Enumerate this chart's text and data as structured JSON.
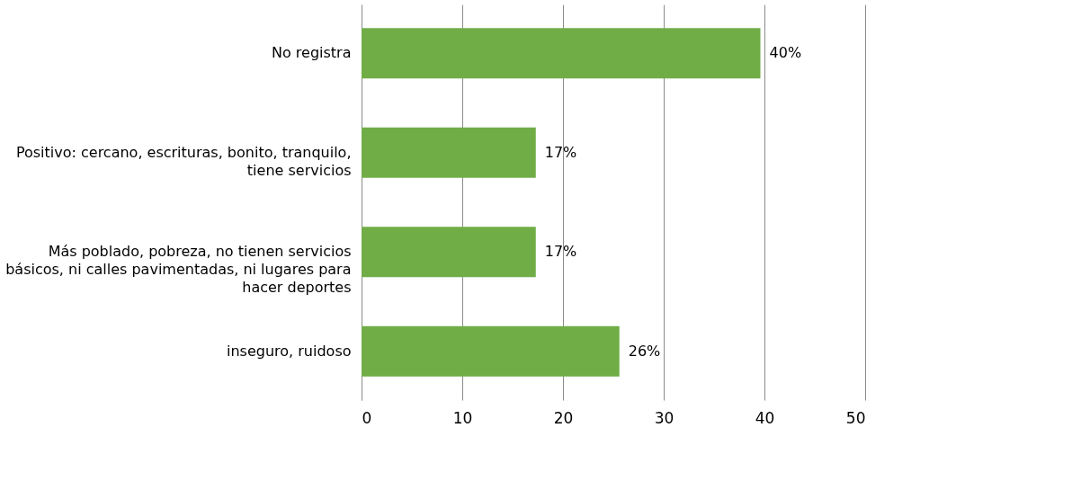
{
  "chart_data": {
    "type": "bar",
    "orientation": "horizontal",
    "categories": [
      "No registra",
      "Positivo: cercano, escrituras, bonito, tranquilo, tiene servicios",
      "Más poblado, pobreza, no tienen servicios básicos, ni calles pavimentadas, ni lugares para hacer deportes",
      "inseguro, ruidoso"
    ],
    "values": [
      39.6,
      17.3,
      17.3,
      25.6
    ],
    "value_labels": [
      "40%",
      "17%",
      "17%",
      "26%"
    ],
    "color": "#70ad47",
    "xlim": [
      0,
      50
    ],
    "xticks": [
      0,
      10,
      20,
      30,
      40,
      50
    ],
    "grid": "x"
  }
}
